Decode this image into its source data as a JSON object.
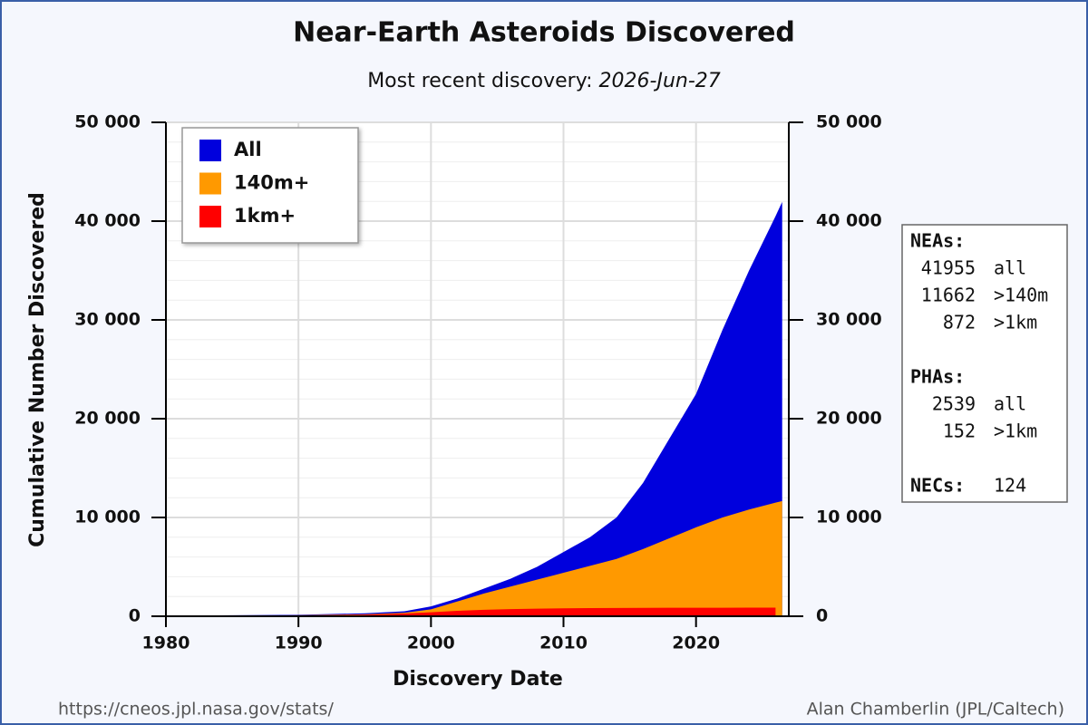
{
  "chart_data": {
    "type": "area",
    "title": "Near-Earth Asteroids Discovered",
    "subtitle": "Most recent discovery:",
    "subtitle_date": "2026-Jun-27",
    "x_label": "Discovery Date",
    "y_label": "Cumulative Number Discovered",
    "x": [
      1980,
      1985,
      1990,
      1995,
      1998,
      2000,
      2002,
      2004,
      2006,
      2008,
      2010,
      2012,
      2014,
      2016,
      2018,
      2020,
      2022,
      2024,
      2026,
      2026.5
    ],
    "series": [
      {
        "name": "All",
        "color": "#0000dd",
        "values": [
          50,
          100,
          150,
          300,
          500,
          1000,
          1800,
          2800,
          3800,
          5000,
          6500,
          8000,
          10000,
          13500,
          18000,
          22500,
          29000,
          35000,
          40500,
          41955
        ]
      },
      {
        "name": "140m+",
        "color": "#ff9900",
        "values": [
          30,
          60,
          100,
          200,
          350,
          700,
          1500,
          2300,
          3000,
          3700,
          4400,
          5100,
          5800,
          6800,
          7900,
          9000,
          10000,
          10800,
          11500,
          11662
        ]
      },
      {
        "name": "1km+",
        "color": "#ff0000",
        "values": [
          20,
          40,
          70,
          150,
          280,
          400,
          550,
          650,
          720,
          770,
          800,
          820,
          835,
          845,
          855,
          860,
          865,
          868,
          872,
          null
        ]
      }
    ],
    "xlim": [
      1980,
      2027
    ],
    "xticks": [
      1980,
      1990,
      2000,
      2010,
      2020
    ],
    "ylim": [
      0,
      50000
    ],
    "yticks": [
      0,
      {
        "value": 10000,
        "label": "10 000"
      },
      {
        "value": 20000,
        "label": "20 000"
      },
      {
        "value": 30000,
        "label": "30 000"
      },
      {
        "value": 40000,
        "label": "40 000"
      },
      {
        "value": 50000,
        "label": "50 000"
      }
    ],
    "y2lim": [
      0,
      50000
    ],
    "y2ticks": [
      0,
      {
        "value": 10000,
        "label": "10 000"
      },
      {
        "value": 20000,
        "label": "20 000"
      },
      {
        "value": 30000,
        "label": "30 000"
      },
      {
        "value": 40000,
        "label": "40 000"
      },
      {
        "value": 50000,
        "label": "50 000"
      }
    ],
    "yminorticks": [
      2000,
      4000,
      6000,
      8000,
      12000,
      14000,
      16000,
      18000,
      22000,
      24000,
      26000,
      28000,
      32000,
      34000,
      36000,
      38000,
      42000,
      44000,
      46000,
      48000
    ],
    "grid": true,
    "legend": "top-left"
  },
  "stats_box": {
    "neas_label": "NEAs:",
    "neas": [
      [
        "41955",
        "all"
      ],
      [
        "11662",
        ">140m"
      ],
      [
        "872",
        ">1km"
      ]
    ],
    "phas_label": "PHAs:",
    "phas": [
      [
        "2539",
        "all"
      ],
      [
        "152",
        ">1km"
      ]
    ],
    "necs_label": "NECs:",
    "necs": "124"
  },
  "footer": {
    "url": "https://cneos.jpl.nasa.gov/stats/",
    "credit": "Alan Chamberlin (JPL/Caltech)"
  }
}
